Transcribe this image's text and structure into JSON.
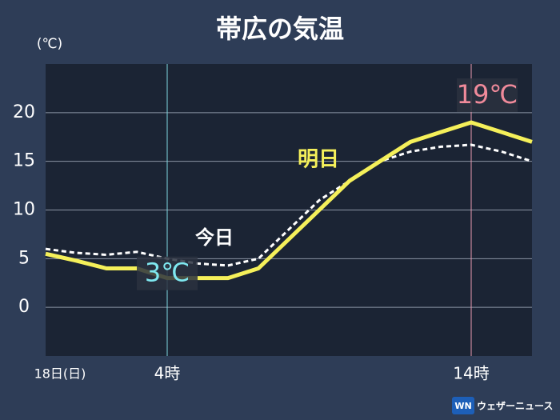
{
  "chart_data": {
    "type": "line",
    "title": "帯広の気温",
    "y_unit": "(℃)",
    "x": [
      0,
      1,
      2,
      3,
      4,
      5,
      6,
      7,
      8,
      9,
      10,
      11,
      12,
      13,
      14,
      15,
      16
    ],
    "xlim": [
      0,
      16
    ],
    "xticks": [
      {
        "value": 0,
        "label": "18日(日)"
      },
      {
        "value": 4,
        "label": "4時"
      },
      {
        "value": 14,
        "label": "14時"
      }
    ],
    "ylim": [
      -5,
      25
    ],
    "yticks": [
      0,
      5,
      10,
      15,
      20
    ],
    "series": [
      {
        "name": "明日",
        "color": "#f5f05a",
        "values": [
          5.5,
          4.8,
          4,
          4,
          3,
          3,
          3,
          4,
          7,
          10,
          13,
          15,
          17,
          18,
          19,
          18,
          17
        ],
        "value_labels": [
          null,
          null,
          null,
          null,
          "3℃",
          null,
          null,
          null,
          null,
          null,
          null,
          null,
          null,
          null,
          "19℃",
          null,
          null
        ]
      },
      {
        "name": "今日",
        "color": "#ffffff",
        "dashed": true,
        "values": [
          6,
          5.6,
          5.4,
          5.7,
          5,
          4.5,
          4.3,
          5,
          8,
          11,
          13,
          15,
          16,
          16.5,
          16.7,
          16,
          15
        ]
      }
    ],
    "brand": "ウェザーニュース",
    "brand_mark": "WN"
  }
}
